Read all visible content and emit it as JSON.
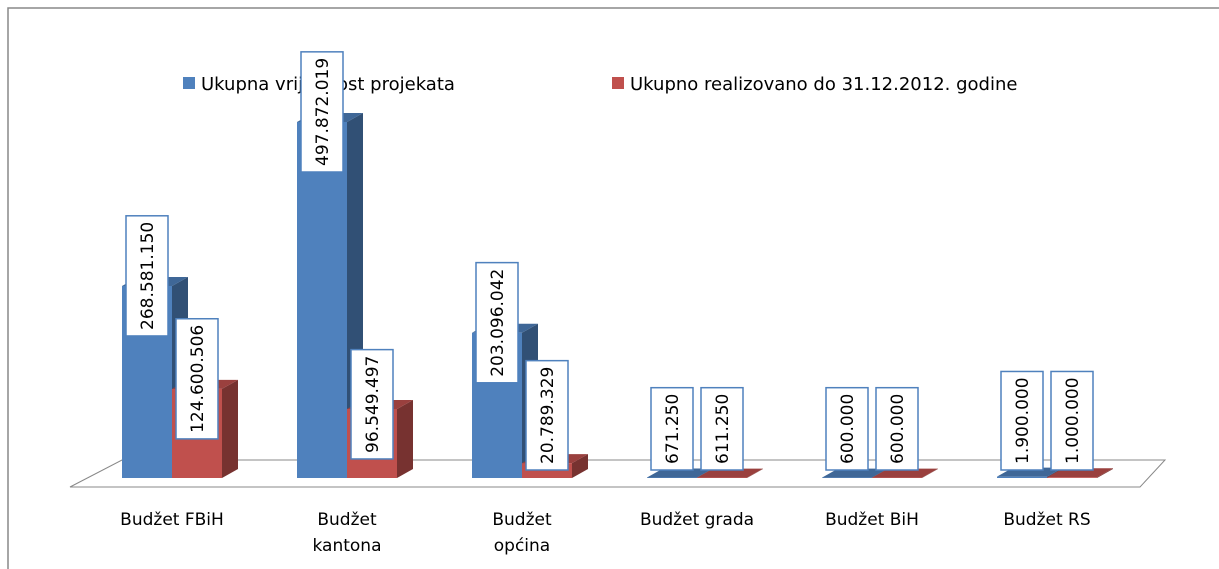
{
  "chart_data": {
    "type": "bar3d",
    "categories": [
      "Budžet FBiH",
      "Budžet kantona",
      "Budžet općina",
      "Budžet grada",
      "Budžet BiH",
      "Budžet RS"
    ],
    "series": [
      {
        "name": "Ukupna vrijednost projekata",
        "color": "#4f81bd",
        "values": [
          268581150,
          497872019,
          203096042,
          671250,
          600000,
          1900000
        ],
        "value_labels": [
          "268.581.150",
          "497.872.019",
          "203.096.042",
          "671.250",
          "600.000",
          "1.900.000"
        ]
      },
      {
        "name": "Ukupno realizovano do 31.12.2012. godine",
        "color": "#c0504d",
        "values": [
          124600506,
          96549497,
          20789329,
          611250,
          600000,
          1000000
        ],
        "value_labels": [
          "124.600.506",
          "96.549.497",
          "20.789.329",
          "611.250",
          "600.000",
          "1.000.000"
        ]
      }
    ],
    "legend": "top"
  }
}
